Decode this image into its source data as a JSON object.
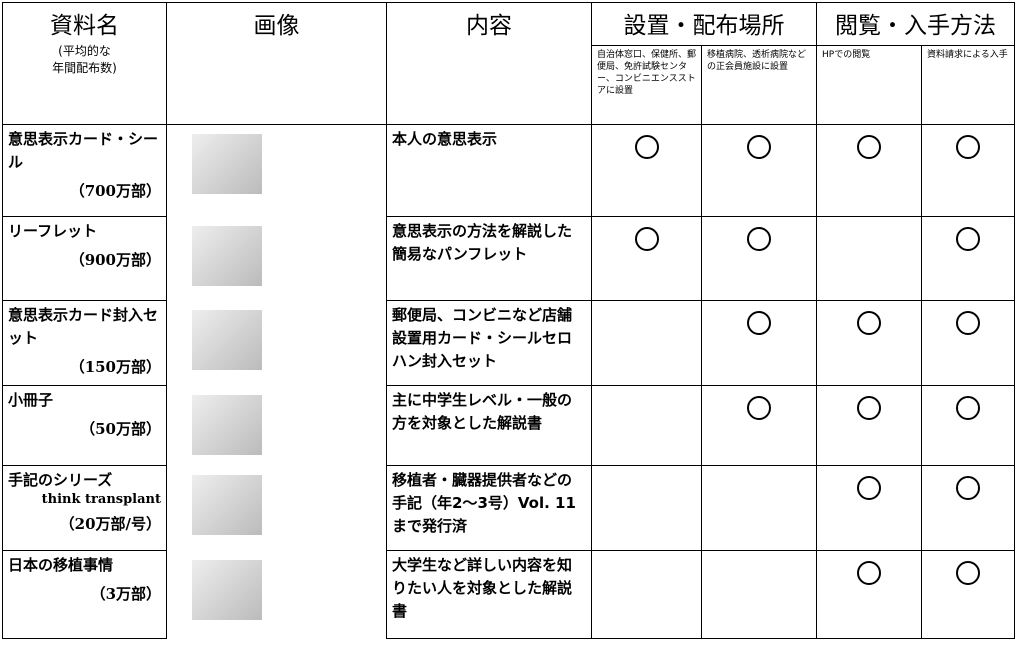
{
  "table": {
    "header": {
      "name": "資料名",
      "name_note": "(平均的な\n年間配布数)",
      "image": "画像",
      "content": "内容",
      "placement": "設置・配布場所",
      "placement_sub": [
        "自治体窓口、保健所、郵便局、免許試験センター、コンビニエンスストアに設置",
        "移植病院、透析病院などの正会員施設に設置"
      ],
      "access": "閲覧・入手方法",
      "access_sub": [
        "HPでの閲覧",
        "資料請求による入手"
      ]
    },
    "rows": [
      {
        "name": "意思表示カード・シール",
        "count": "（700万部）",
        "content": "本人の意思表示",
        "available": [
          true,
          true,
          true,
          true
        ]
      },
      {
        "name": "リーフレット",
        "count": "（900万部）",
        "content": "意思表示の方法を解説した簡易なパンフレット",
        "available": [
          true,
          true,
          false,
          true
        ]
      },
      {
        "name": "意思表示カード封入セット",
        "count": "（150万部）",
        "content": "郵便局、コンビニなど店舗設置用カード・シールセロハン封入セット",
        "available": [
          false,
          true,
          true,
          true
        ]
      },
      {
        "name": "小冊子",
        "count": "（50万部）",
        "content": "主に中学生レベル・一般の方を対象とした解説書",
        "available": [
          false,
          true,
          true,
          true
        ]
      },
      {
        "name": "手記のシリーズ",
        "subtitle": "think transplant",
        "count": "（20万部/号）",
        "content": "移植者・臓器提供者などの手記（年2～3号）Vol. 11まで発行済",
        "available": [
          false,
          false,
          true,
          true
        ]
      },
      {
        "name": "日本の移植事情",
        "count": "（3万部）",
        "content": "大学生など詳しい内容を知りたい人を対象とした解説書",
        "available": [
          false,
          false,
          true,
          true
        ]
      }
    ]
  }
}
